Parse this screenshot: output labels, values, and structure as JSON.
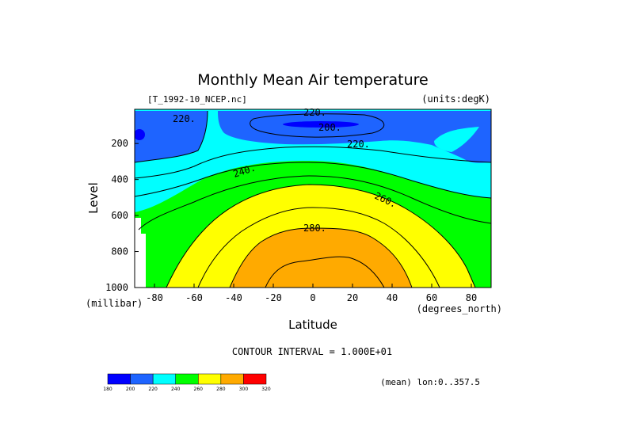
{
  "chart_data": {
    "type": "contour",
    "title": "Monthly Mean Air temperature",
    "source_file": "[T_1992-10_NCEP.nc]",
    "units_label": "(units:degK)",
    "xlabel": "Latitude",
    "x_units": "(degrees_north)",
    "ylabel": "Level",
    "y_units": "(millibar)",
    "x_ticks": [
      "-80",
      "-60",
      "-40",
      "-20",
      "0",
      "20",
      "40",
      "60",
      "80"
    ],
    "y_ticks": [
      "200",
      "400",
      "600",
      "800",
      "1000"
    ],
    "xlim": [
      -90,
      90
    ],
    "ylim": [
      1000,
      10
    ],
    "contour_interval": "CONTOUR INTERVAL = 1.000E+01",
    "mean_note": "(mean) lon:0..357.5",
    "contour_labels": [
      "220.",
      "220.",
      "200.",
      "220.",
      "240.",
      "260.",
      "280."
    ],
    "colorbar": {
      "values": [
        "180",
        "200",
        "220",
        "240",
        "260",
        "280",
        "300",
        "320"
      ],
      "colors": [
        "#0000ff",
        "#1e64ff",
        "#00ffff",
        "#00ff00",
        "#ffff00",
        "#ffaa00",
        "#ff0000"
      ]
    }
  }
}
